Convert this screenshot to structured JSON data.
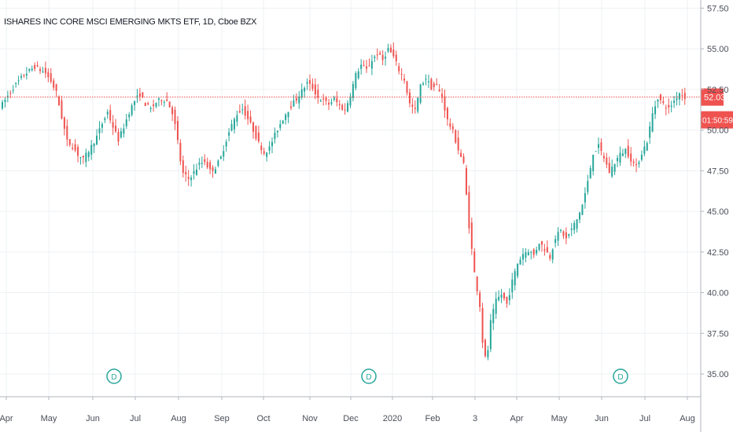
{
  "chart_data": {
    "type": "candlestick",
    "title": "ISHARES INC CORE MSCI EMERGING MKTS ETF, 1D, Cboe BZX",
    "x_tick_labels": [
      "Apr",
      "May",
      "Jun",
      "Jul",
      "Aug",
      "Sep",
      "Oct",
      "Nov",
      "Dec",
      "2020",
      "Feb",
      "3",
      "Apr",
      "May",
      "Jun",
      "Jul",
      "Aug"
    ],
    "y_tick_labels": [
      "35.00",
      "37.50",
      "40.00",
      "42.50",
      "45.00",
      "47.50",
      "50.00",
      "52.50",
      "55.00",
      "57.50"
    ],
    "ylim": [
      33.6,
      58.0
    ],
    "last_price": 52.03,
    "last_price_label": "52.03",
    "countdown_label": "01:50:59",
    "dividend_marker_label": "D",
    "colors": {
      "up": "#26a69a",
      "down": "#ef5350",
      "price_line": "#ef5350",
      "marker": "#26a69a"
    },
    "close_path": [
      [
        0,
        51.6
      ],
      [
        4,
        52.6
      ],
      [
        8,
        53.4
      ],
      [
        12,
        53.9
      ],
      [
        16,
        53.5
      ],
      [
        18,
        53.0
      ],
      [
        20,
        52.3
      ],
      [
        22,
        50.8
      ],
      [
        24,
        49.3
      ],
      [
        26,
        49.0
      ],
      [
        28,
        48.5
      ],
      [
        30,
        48.2
      ],
      [
        33,
        49.0
      ],
      [
        35,
        49.6
      ],
      [
        37,
        50.4
      ],
      [
        39,
        51.1
      ],
      [
        41,
        50.2
      ],
      [
        43,
        49.4
      ],
      [
        45,
        50.2
      ],
      [
        47,
        51.1
      ],
      [
        49,
        51.8
      ],
      [
        51,
        52.2
      ],
      [
        53,
        51.6
      ],
      [
        55,
        51.3
      ],
      [
        57,
        51.7
      ],
      [
        59,
        51.9
      ],
      [
        61,
        51.8
      ],
      [
        63,
        51.1
      ],
      [
        64,
        50.3
      ],
      [
        65,
        49.3
      ],
      [
        66,
        48.1
      ],
      [
        67,
        47.3
      ],
      [
        69,
        47.0
      ],
      [
        71,
        47.4
      ],
      [
        73,
        47.9
      ],
      [
        75,
        48.1
      ],
      [
        77,
        47.5
      ],
      [
        79,
        47.7
      ],
      [
        81,
        48.3
      ],
      [
        83,
        49.4
      ],
      [
        85,
        50.3
      ],
      [
        87,
        51.0
      ],
      [
        89,
        51.3
      ],
      [
        91,
        50.7
      ],
      [
        93,
        50.0
      ],
      [
        95,
        49.2
      ],
      [
        97,
        48.6
      ],
      [
        99,
        48.9
      ],
      [
        101,
        49.7
      ],
      [
        103,
        50.4
      ],
      [
        105,
        51.0
      ],
      [
        107,
        51.5
      ],
      [
        109,
        51.9
      ],
      [
        111,
        52.4
      ],
      [
        113,
        52.9
      ],
      [
        115,
        52.6
      ],
      [
        117,
        52.0
      ],
      [
        119,
        51.8
      ],
      [
        121,
        51.6
      ],
      [
        123,
        51.9
      ],
      [
        125,
        51.5
      ],
      [
        127,
        51.2
      ],
      [
        129,
        52.2
      ],
      [
        131,
        53.4
      ],
      [
        133,
        54.0
      ],
      [
        135,
        53.7
      ],
      [
        137,
        54.3
      ],
      [
        139,
        54.7
      ],
      [
        141,
        54.3
      ],
      [
        143,
        55.0
      ],
      [
        145,
        54.5
      ],
      [
        147,
        53.7
      ],
      [
        149,
        53.1
      ],
      [
        151,
        51.6
      ],
      [
        153,
        51.2
      ],
      [
        155,
        52.7
      ],
      [
        157,
        53.2
      ],
      [
        159,
        52.6
      ],
      [
        161,
        52.7
      ],
      [
        163,
        52.0
      ],
      [
        165,
        50.6
      ],
      [
        167,
        49.9
      ],
      [
        169,
        48.8
      ],
      [
        171,
        47.9
      ],
      [
        173,
        44.1
      ],
      [
        175,
        41.2
      ],
      [
        177,
        39.2
      ],
      [
        178,
        37.0
      ],
      [
        179,
        36.0
      ],
      [
        180,
        36.5
      ],
      [
        181,
        38.2
      ],
      [
        183,
        39.5
      ],
      [
        185,
        39.9
      ],
      [
        187,
        39.3
      ],
      [
        189,
        40.7
      ],
      [
        191,
        41.8
      ],
      [
        193,
        42.4
      ],
      [
        195,
        42.6
      ],
      [
        197,
        42.3
      ],
      [
        199,
        43.1
      ],
      [
        201,
        42.7
      ],
      [
        203,
        42.2
      ],
      [
        205,
        43.4
      ],
      [
        207,
        43.8
      ],
      [
        209,
        43.3
      ],
      [
        211,
        43.9
      ],
      [
        213,
        44.5
      ],
      [
        215,
        45.4
      ],
      [
        217,
        46.8
      ],
      [
        219,
        48.6
      ],
      [
        221,
        49.0
      ],
      [
        223,
        48.3
      ],
      [
        225,
        47.4
      ],
      [
        227,
        48.0
      ],
      [
        229,
        48.5
      ],
      [
        231,
        48.8
      ],
      [
        233,
        48.2
      ],
      [
        235,
        47.7
      ],
      [
        237,
        48.6
      ],
      [
        239,
        49.3
      ],
      [
        241,
        51.0
      ],
      [
        243,
        52.0
      ],
      [
        245,
        51.6
      ],
      [
        247,
        51.3
      ],
      [
        249,
        51.8
      ],
      [
        251,
        52.3
      ],
      [
        253,
        52.03
      ]
    ]
  }
}
